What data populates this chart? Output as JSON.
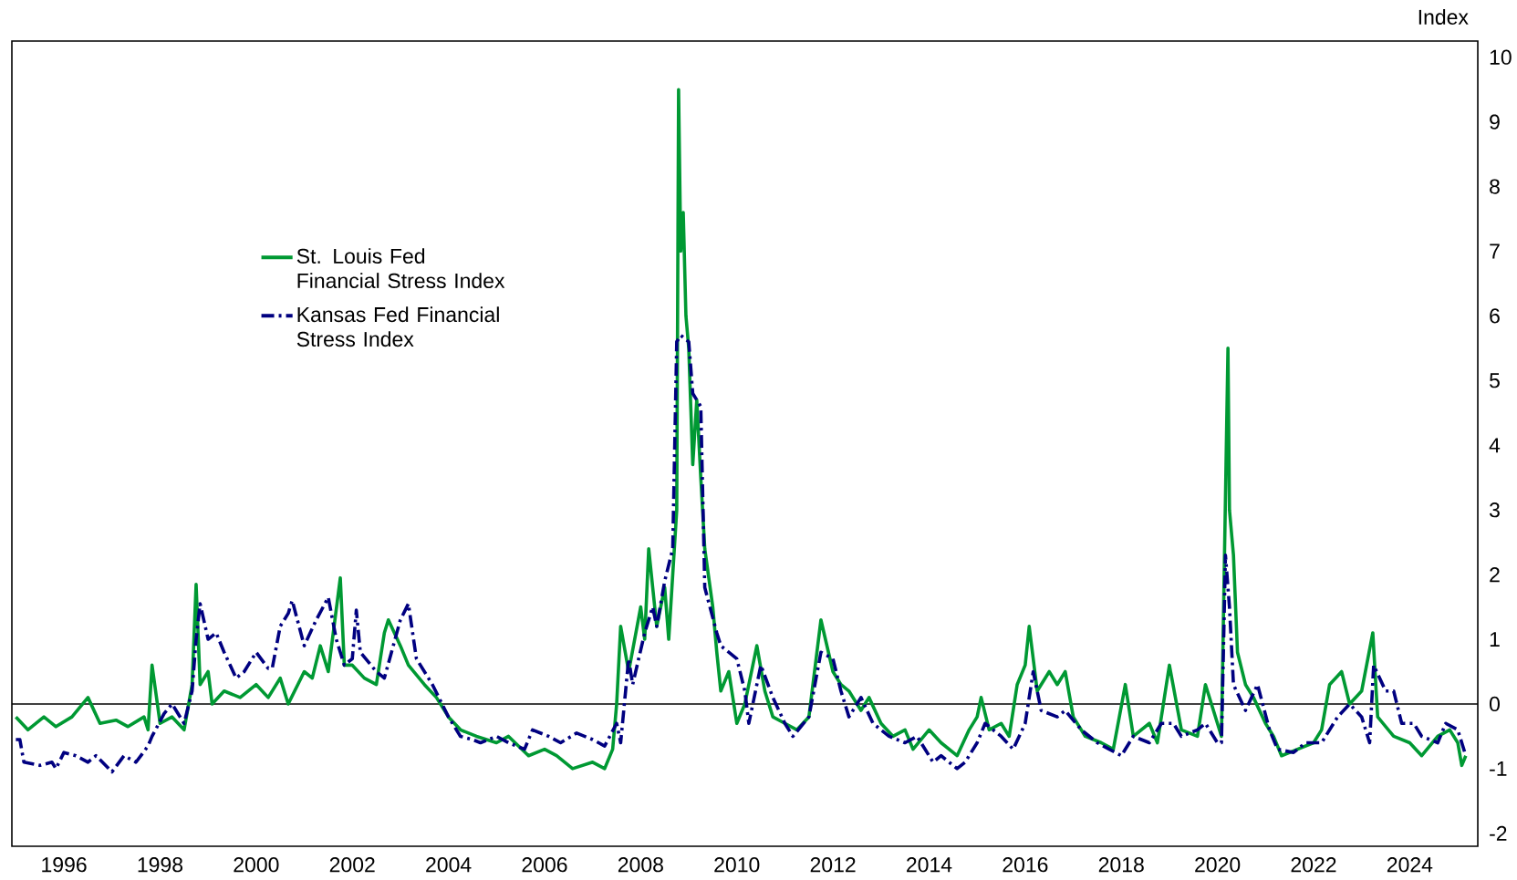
{
  "chart_data": {
    "type": "line",
    "ylabel": "Index",
    "xlim": [
      "1994-12",
      "2025-06"
    ],
    "xticks": [
      "1996",
      "1998",
      "2000",
      "2002",
      "2004",
      "2006",
      "2008",
      "2010",
      "2012",
      "2014",
      "2016",
      "2018",
      "2020",
      "2022",
      "2024"
    ],
    "ylim": [
      -2.2,
      10.25
    ],
    "yticks": [
      -2,
      -1,
      0,
      1,
      2,
      3,
      4,
      5,
      6,
      7,
      8,
      9,
      10
    ],
    "grid": false,
    "legend": "left",
    "marker": "none",
    "ref_lines": [
      {
        "axis": "y",
        "value": 0,
        "color": "#000000"
      }
    ],
    "series": [
      {
        "name": "St. Louis Fed Financial Stress Index",
        "color": "#009933",
        "line_style": "solid",
        "x": [
          "1995-01",
          "1995-04",
          "1995-08",
          "1995-11",
          "1996-03",
          "1996-07",
          "1996-10",
          "1997-02",
          "1997-05",
          "1997-09",
          "1997-10",
          "1997-11",
          "1998-01",
          "1998-04",
          "1998-07",
          "1998-09",
          "1998-10",
          "1998-11",
          "1999-01",
          "1999-02",
          "1999-05",
          "1999-09",
          "2000-01",
          "2000-04",
          "2000-07",
          "2000-09",
          "2001-01",
          "2001-03",
          "2001-05",
          "2001-07",
          "2001-10",
          "2001-11",
          "2002-01",
          "2002-04",
          "2002-07",
          "2002-09",
          "2002-10",
          "2003-01",
          "2003-03",
          "2003-07",
          "2003-10",
          "2004-01",
          "2004-04",
          "2004-08",
          "2005-01",
          "2005-04",
          "2005-09",
          "2006-01",
          "2006-04",
          "2006-08",
          "2007-01",
          "2007-04",
          "2007-06",
          "2007-07",
          "2007-08",
          "2007-10",
          "2008-01",
          "2008-02",
          "2008-03",
          "2008-05",
          "2008-07",
          "2008-08",
          "2008-09",
          "2008-10-01",
          "2008-10-15",
          "2008-11-01",
          "2008-11-20",
          "2008-12-10",
          "2009-01",
          "2009-02",
          "2009-03",
          "2009-04",
          "2009-05",
          "2009-07",
          "2009-08",
          "2009-09",
          "2009-11",
          "2010-01",
          "2010-03",
          "2010-06",
          "2010-08",
          "2010-10",
          "2011-01",
          "2011-04",
          "2011-07",
          "2011-09",
          "2011-10",
          "2012-01",
          "2012-03",
          "2012-05",
          "2012-08",
          "2012-10",
          "2013-01",
          "2013-04",
          "2013-07",
          "2013-09",
          "2014-01",
          "2014-04",
          "2014-08",
          "2014-11",
          "2015-01",
          "2015-02",
          "2015-04",
          "2015-07",
          "2015-09",
          "2015-11",
          "2016-01",
          "2016-02",
          "2016-04",
          "2016-07",
          "2016-09",
          "2016-11",
          "2017-01",
          "2017-04",
          "2017-08",
          "2017-11",
          "2018-02",
          "2018-04",
          "2018-08",
          "2018-10",
          "2018-12",
          "2019-01",
          "2019-04",
          "2019-08",
          "2019-10",
          "2020-01",
          "2020-02",
          "2020-03-20",
          "2020-04",
          "2020-05",
          "2020-06",
          "2020-08",
          "2020-10",
          "2021-01",
          "2021-03",
          "2021-05",
          "2021-09",
          "2022-01",
          "2022-03",
          "2022-05",
          "2022-08",
          "2022-10",
          "2023-01",
          "2023-03-25",
          "2023-05",
          "2023-09",
          "2024-01",
          "2024-04",
          "2024-08",
          "2024-11",
          "2025-01",
          "2025-02",
          "2025-03"
        ],
        "values": [
          -0.2,
          -0.4,
          -0.2,
          -0.35,
          -0.2,
          0.1,
          -0.3,
          -0.25,
          -0.35,
          -0.2,
          -0.4,
          0.6,
          -0.3,
          -0.2,
          -0.4,
          0.3,
          1.85,
          0.3,
          0.5,
          0.0,
          0.2,
          0.1,
          0.3,
          0.1,
          0.4,
          0.0,
          0.5,
          0.4,
          0.9,
          0.5,
          1.95,
          0.6,
          0.6,
          0.4,
          0.3,
          1.1,
          1.3,
          0.9,
          0.6,
          0.3,
          0.1,
          -0.2,
          -0.4,
          -0.5,
          -0.6,
          -0.5,
          -0.8,
          -0.7,
          -0.8,
          -1.0,
          -0.9,
          -1.0,
          -0.7,
          0.0,
          1.2,
          0.5,
          1.5,
          1.0,
          2.4,
          1.2,
          1.8,
          1.0,
          2.0,
          3.0,
          9.5,
          7.0,
          7.6,
          6.0,
          5.5,
          3.7,
          4.7,
          3.5,
          2.4,
          1.5,
          0.8,
          0.2,
          0.5,
          -0.3,
          0.0,
          0.9,
          0.2,
          -0.2,
          -0.3,
          -0.4,
          -0.2,
          0.8,
          1.3,
          0.5,
          0.3,
          0.2,
          -0.1,
          0.1,
          -0.3,
          -0.5,
          -0.4,
          -0.7,
          -0.4,
          -0.6,
          -0.8,
          -0.4,
          -0.2,
          0.1,
          -0.4,
          -0.3,
          -0.5,
          0.3,
          0.6,
          1.2,
          0.2,
          0.5,
          0.3,
          0.5,
          -0.2,
          -0.5,
          -0.6,
          -0.7,
          0.3,
          -0.5,
          -0.3,
          -0.6,
          0.2,
          0.6,
          -0.4,
          -0.5,
          0.3,
          -0.3,
          -0.5,
          5.5,
          3.0,
          2.3,
          0.8,
          0.3,
          0.1,
          -0.3,
          -0.5,
          -0.8,
          -0.7,
          -0.6,
          -0.4,
          0.3,
          0.5,
          0.0,
          0.2,
          1.1,
          -0.2,
          -0.5,
          -0.6,
          -0.8,
          -0.5,
          -0.4,
          -0.6,
          -0.95,
          -0.8
        ]
      },
      {
        "name": "Kansas Fed Financial Stress Index",
        "color": "#000080",
        "line_style": "dashed",
        "x": [
          "1995-01",
          "1995-02",
          "1995-03",
          "1995-07",
          "1995-10",
          "1995-11",
          "1996-01",
          "1996-04",
          "1996-07",
          "1996-09",
          "1997-01",
          "1997-04",
          "1997-07",
          "1997-10",
          "1997-11",
          "1998-02",
          "1998-04",
          "1998-07",
          "1998-09",
          "1998-10",
          "1998-11",
          "1999-01",
          "1999-03",
          "1999-05",
          "1999-08",
          "1999-10",
          "2000-01",
          "2000-04",
          "2000-05",
          "2000-07",
          "2000-09",
          "2000-10",
          "2001-01",
          "2001-04",
          "2001-07",
          "2001-09",
          "2001-11",
          "2002-01",
          "2002-02",
          "2002-03",
          "2002-07",
          "2002-09",
          "2003-01",
          "2003-03",
          "2003-05",
          "2003-09",
          "2004-01",
          "2004-04",
          "2004-07",
          "2004-09",
          "2005-01",
          "2005-04",
          "2005-08",
          "2005-10",
          "2006-02",
          "2006-05",
          "2006-09",
          "2007-01",
          "2007-04",
          "2007-07",
          "2007-08",
          "2007-10",
          "2007-11",
          "2008-02",
          "2008-04",
          "2008-05",
          "2008-07",
          "2008-09",
          "2008-10",
          "2008-11",
          "2009-01",
          "2009-02",
          "2009-04",
          "2009-05",
          "2009-08",
          "2009-09",
          "2010-01",
          "2010-03",
          "2010-04",
          "2010-07",
          "2010-10",
          "2011-01",
          "2011-03",
          "2011-07",
          "2011-10",
          "2012-01",
          "2012-03",
          "2012-05",
          "2012-08",
          "2012-11",
          "2013-03",
          "2013-07",
          "2013-10",
          "2014-02",
          "2014-04",
          "2014-08",
          "2014-10",
          "2015-01",
          "2015-03",
          "2015-07",
          "2015-10",
          "2016-01",
          "2016-03",
          "2016-05",
          "2016-09",
          "2016-11",
          "2017-03",
          "2017-07",
          "2017-10",
          "2018-01",
          "2018-04",
          "2018-08",
          "2018-11",
          "2019-02",
          "2019-04",
          "2019-08",
          "2019-10",
          "2020-01",
          "2020-02",
          "2020-03",
          "2020-04",
          "2020-05",
          "2020-08",
          "2020-11",
          "2021-02",
          "2021-04",
          "2021-08",
          "2021-11",
          "2022-03",
          "2022-07",
          "2022-10",
          "2023-01",
          "2023-03",
          "2023-04",
          "2023-07",
          "2023-09",
          "2023-11",
          "2024-02",
          "2024-04",
          "2024-08",
          "2024-10",
          "2025-01",
          "2025-03"
        ],
        "values": [
          -0.55,
          -0.55,
          -0.9,
          -0.95,
          -0.9,
          -1.0,
          -0.75,
          -0.8,
          -0.9,
          -0.8,
          -1.05,
          -0.8,
          -0.9,
          -0.65,
          -0.5,
          -0.15,
          0.0,
          -0.3,
          0.2,
          1.0,
          1.55,
          1.0,
          1.1,
          0.8,
          0.4,
          0.5,
          0.8,
          0.55,
          0.55,
          1.2,
          1.4,
          1.6,
          0.9,
          1.3,
          1.65,
          1.0,
          0.6,
          0.7,
          1.45,
          0.8,
          0.5,
          0.4,
          1.3,
          1.55,
          0.7,
          0.3,
          -0.2,
          -0.5,
          -0.55,
          -0.6,
          -0.5,
          -0.6,
          -0.7,
          -0.4,
          -0.5,
          -0.6,
          -0.45,
          -0.55,
          -0.65,
          -0.3,
          -0.6,
          0.7,
          0.3,
          1.1,
          1.5,
          1.2,
          1.9,
          2.4,
          5.6,
          5.7,
          5.6,
          4.8,
          4.6,
          1.8,
          1.1,
          0.9,
          0.7,
          0.2,
          -0.3,
          0.6,
          0.1,
          -0.3,
          -0.5,
          -0.2,
          0.8,
          0.7,
          0.2,
          -0.2,
          0.1,
          -0.3,
          -0.5,
          -0.6,
          -0.5,
          -0.9,
          -0.8,
          -1.0,
          -0.9,
          -0.6,
          -0.3,
          -0.5,
          -0.7,
          -0.3,
          0.5,
          -0.1,
          -0.2,
          -0.1,
          -0.4,
          -0.6,
          -0.7,
          -0.8,
          -0.5,
          -0.6,
          -0.3,
          -0.3,
          -0.5,
          -0.4,
          -0.3,
          -0.6,
          -0.6,
          2.3,
          1.5,
          0.3,
          -0.1,
          0.3,
          -0.4,
          -0.7,
          -0.75,
          -0.6,
          -0.6,
          -0.2,
          0.0,
          -0.2,
          -0.6,
          0.6,
          0.2,
          0.2,
          -0.3,
          -0.3,
          -0.5,
          -0.6,
          -0.3,
          -0.4,
          -0.8
        ]
      }
    ]
  }
}
